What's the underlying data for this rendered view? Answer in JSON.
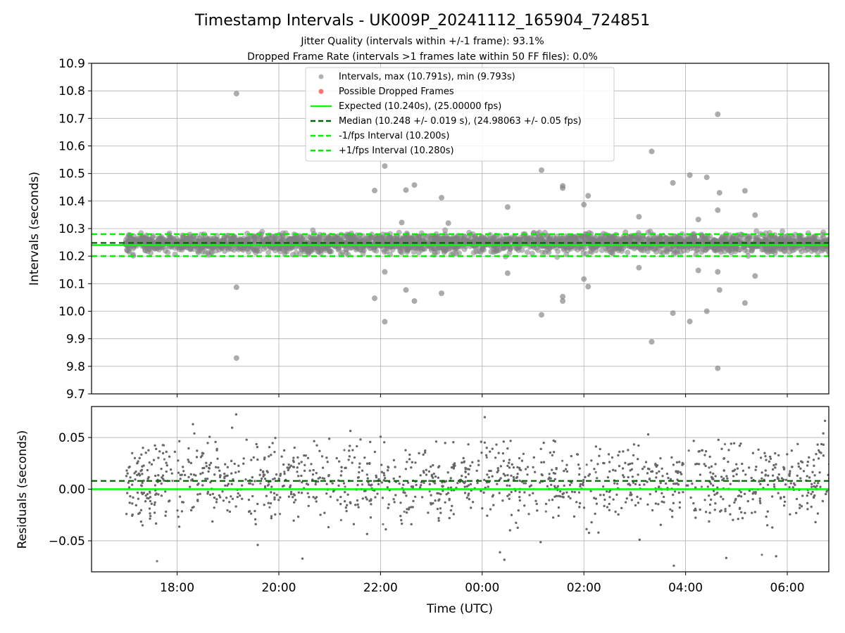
{
  "figure": {
    "title": "Timestamp Intervals - UK009P_20241112_165904_724851",
    "subtitle_line1": "Jitter Quality (intervals within +/-1 frame): 93.1%",
    "subtitle_line2": "Dropped Frame Rate (intervals >1 frames late within 50 FF files): 0.0%"
  },
  "colors": {
    "points": "#808080",
    "dropped": "#ff5050",
    "expected": "#00ff00",
    "median": "#006400",
    "interval_lines": "#00ee00",
    "grid": "#b0b0b0"
  },
  "chart_data": [
    {
      "type": "scatter",
      "panel": "top",
      "ylabel": "Intervals (seconds)",
      "ylim": [
        9.7,
        10.9
      ],
      "yticks": [
        "9.7",
        "9.8",
        "9.9",
        "10.0",
        "10.1",
        "10.2",
        "10.3",
        "10.4",
        "10.5",
        "10.6",
        "10.7",
        "10.8",
        "10.9"
      ],
      "x_start": "16:59",
      "x_end": "06:50",
      "grid": true,
      "legend_placement": "upper-center",
      "legend": [
        {
          "marker": "dot-gray",
          "label": "Intervals, max (10.791s), min (9.793s)"
        },
        {
          "marker": "dot-red",
          "label": "Possible Dropped Frames"
        },
        {
          "marker": "solid-green",
          "label": "Expected (10.240s), (25.00000 fps)"
        },
        {
          "marker": "dashed-darkgreen",
          "label": "Median (10.248 +/- 0.019 s), (24.98063 +/- 0.05 fps)"
        },
        {
          "marker": "dashed-green",
          "label": "-1/fps Interval (10.200s)"
        },
        {
          "marker": "dashed-green",
          "label": "+1/fps Interval (10.280s)"
        }
      ],
      "reference_lines": {
        "expected": 10.24,
        "median": 10.248,
        "minus_one_frame": 10.2,
        "plus_one_frame": 10.28
      },
      "band": {
        "center": 10.248,
        "spread": 0.019,
        "range": [
          10.19,
          10.3
        ]
      },
      "outliers": [
        {
          "x": "19:10",
          "y": 10.79
        },
        {
          "x": "19:10",
          "y": 10.087
        },
        {
          "x": "19:10",
          "y": 9.83
        },
        {
          "x": "21:53",
          "y": 10.438
        },
        {
          "x": "21:53",
          "y": 10.047
        },
        {
          "x": "22:05",
          "y": 10.527
        },
        {
          "x": "22:05",
          "y": 10.143
        },
        {
          "x": "22:05",
          "y": 9.962
        },
        {
          "x": "22:30",
          "y": 10.44
        },
        {
          "x": "22:30",
          "y": 10.077
        },
        {
          "x": "22:40",
          "y": 10.458
        },
        {
          "x": "22:40",
          "y": 10.037
        },
        {
          "x": "23:12",
          "y": 10.412
        },
        {
          "x": "23:12",
          "y": 10.065
        },
        {
          "x": "00:30",
          "y": 10.378
        },
        {
          "x": "00:30",
          "y": 10.138
        },
        {
          "x": "01:10",
          "y": 10.512
        },
        {
          "x": "01:10",
          "y": 9.987
        },
        {
          "x": "01:35",
          "y": 10.455
        },
        {
          "x": "01:35",
          "y": 10.447
        },
        {
          "x": "01:35",
          "y": 10.053
        },
        {
          "x": "01:35",
          "y": 10.037
        },
        {
          "x": "02:00",
          "y": 10.387
        },
        {
          "x": "02:00",
          "y": 10.117
        },
        {
          "x": "02:05",
          "y": 10.419
        },
        {
          "x": "02:05",
          "y": 10.089
        },
        {
          "x": "03:05",
          "y": 10.343
        },
        {
          "x": "03:05",
          "y": 10.158
        },
        {
          "x": "03:20",
          "y": 10.58
        },
        {
          "x": "03:20",
          "y": 9.889
        },
        {
          "x": "03:45",
          "y": 10.466
        },
        {
          "x": "03:45",
          "y": 9.993
        },
        {
          "x": "04:05",
          "y": 10.494
        },
        {
          "x": "04:05",
          "y": 9.963
        },
        {
          "x": "04:15",
          "y": 10.333
        },
        {
          "x": "04:15",
          "y": 10.148
        },
        {
          "x": "04:25",
          "y": 10.486
        },
        {
          "x": "04:25",
          "y": 10.0
        },
        {
          "x": "04:38",
          "y": 10.715
        },
        {
          "x": "04:38",
          "y": 9.793
        },
        {
          "x": "04:40",
          "y": 10.43
        },
        {
          "x": "04:40",
          "y": 10.077
        },
        {
          "x": "04:38",
          "y": 10.367
        },
        {
          "x": "04:38",
          "y": 10.143
        },
        {
          "x": "05:10",
          "y": 10.437
        },
        {
          "x": "05:10",
          "y": 10.03
        },
        {
          "x": "05:22",
          "y": 10.349
        },
        {
          "x": "05:22",
          "y": 10.128
        },
        {
          "x": "23:20",
          "y": 10.32
        },
        {
          "x": "22:25",
          "y": 10.322
        }
      ]
    },
    {
      "type": "scatter",
      "panel": "bottom",
      "ylabel": "Residuals (seconds)",
      "xlabel": "Time (UTC)",
      "ylim": [
        -0.08,
        0.08
      ],
      "yticks": [
        "−0.05",
        "0.00",
        "0.05"
      ],
      "yticks_values": [
        -0.05,
        0.0,
        0.05
      ],
      "xticks": [
        "18:00",
        "20:00",
        "22:00",
        "00:00",
        "02:00",
        "04:00",
        "06:00"
      ],
      "reference_lines": {
        "expected": 0.0,
        "median": 0.008
      },
      "residual_spread": 0.019,
      "grid": true
    }
  ]
}
